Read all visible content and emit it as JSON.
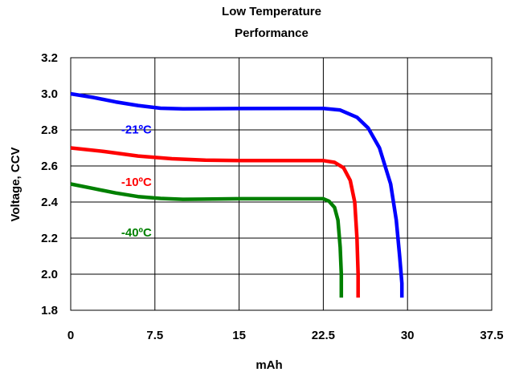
{
  "chart_data": {
    "type": "line",
    "title_lines": [
      "Low Temperature",
      "Performance"
    ],
    "xlabel": "mAh",
    "ylabel": "Voltage, CCV",
    "xlim": [
      0,
      37.5
    ],
    "ylim": [
      1.8,
      3.2
    ],
    "x_ticks": [
      "0",
      "7.5",
      "15",
      "22.5",
      "30",
      "37.5"
    ],
    "y_ticks": [
      "1.8",
      "2.0",
      "2.2",
      "2.4",
      "2.6",
      "2.8",
      "3.0",
      "3.2"
    ],
    "grid": true,
    "series": [
      {
        "name": "-21ºC",
        "color": "#0000ff",
        "label_pos": [
          4.5,
          2.78
        ],
        "points": [
          [
            0,
            3.0
          ],
          [
            2,
            2.98
          ],
          [
            4,
            2.955
          ],
          [
            6,
            2.935
          ],
          [
            8,
            2.92
          ],
          [
            10,
            2.917
          ],
          [
            15,
            2.918
          ],
          [
            20,
            2.919
          ],
          [
            22.5,
            2.919
          ],
          [
            24,
            2.91
          ],
          [
            25.5,
            2.87
          ],
          [
            26.5,
            2.81
          ],
          [
            27.5,
            2.7
          ],
          [
            28.5,
            2.5
          ],
          [
            29,
            2.3
          ],
          [
            29.3,
            2.1
          ],
          [
            29.5,
            1.95
          ],
          [
            29.5,
            1.87
          ]
        ]
      },
      {
        "name": "-10ºC",
        "color": "#ff0000",
        "label_pos": [
          4.5,
          2.49
        ],
        "points": [
          [
            0,
            2.7
          ],
          [
            3,
            2.68
          ],
          [
            6,
            2.655
          ],
          [
            9,
            2.64
          ],
          [
            12,
            2.632
          ],
          [
            15,
            2.63
          ],
          [
            20,
            2.63
          ],
          [
            22.5,
            2.63
          ],
          [
            23.5,
            2.62
          ],
          [
            24.3,
            2.59
          ],
          [
            24.9,
            2.52
          ],
          [
            25.3,
            2.4
          ],
          [
            25.5,
            2.2
          ],
          [
            25.6,
            2.0
          ],
          [
            25.6,
            1.87
          ]
        ]
      },
      {
        "name": "-40ºC",
        "color": "#008000",
        "label_pos": [
          4.5,
          2.21
        ],
        "points": [
          [
            0,
            2.5
          ],
          [
            2,
            2.475
          ],
          [
            4,
            2.45
          ],
          [
            6,
            2.43
          ],
          [
            8,
            2.42
          ],
          [
            10,
            2.415
          ],
          [
            15,
            2.418
          ],
          [
            20,
            2.418
          ],
          [
            22.5,
            2.418
          ],
          [
            23,
            2.405
          ],
          [
            23.5,
            2.37
          ],
          [
            23.8,
            2.3
          ],
          [
            24,
            2.15
          ],
          [
            24.1,
            2.0
          ],
          [
            24.1,
            1.87
          ]
        ]
      }
    ]
  }
}
